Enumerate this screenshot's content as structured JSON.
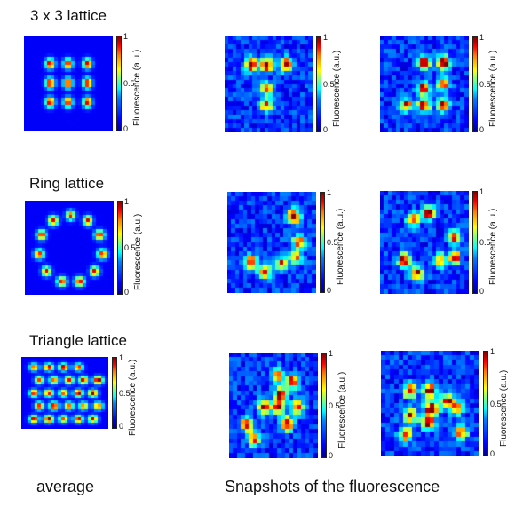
{
  "rows": [
    {
      "label": "3 x 3 lattice"
    },
    {
      "label": "Ring lattice"
    },
    {
      "label": "Triangle lattice"
    }
  ],
  "colorbar": {
    "title": "Fluorescence (a.u.)",
    "ticks": [
      "1",
      "0.5",
      "0"
    ]
  },
  "footer": {
    "left": "average",
    "right": "Snapshots of the fluorescence"
  },
  "colors": {
    "background": "#1030c0",
    "low": "#0000c8",
    "high": "#800000"
  }
}
